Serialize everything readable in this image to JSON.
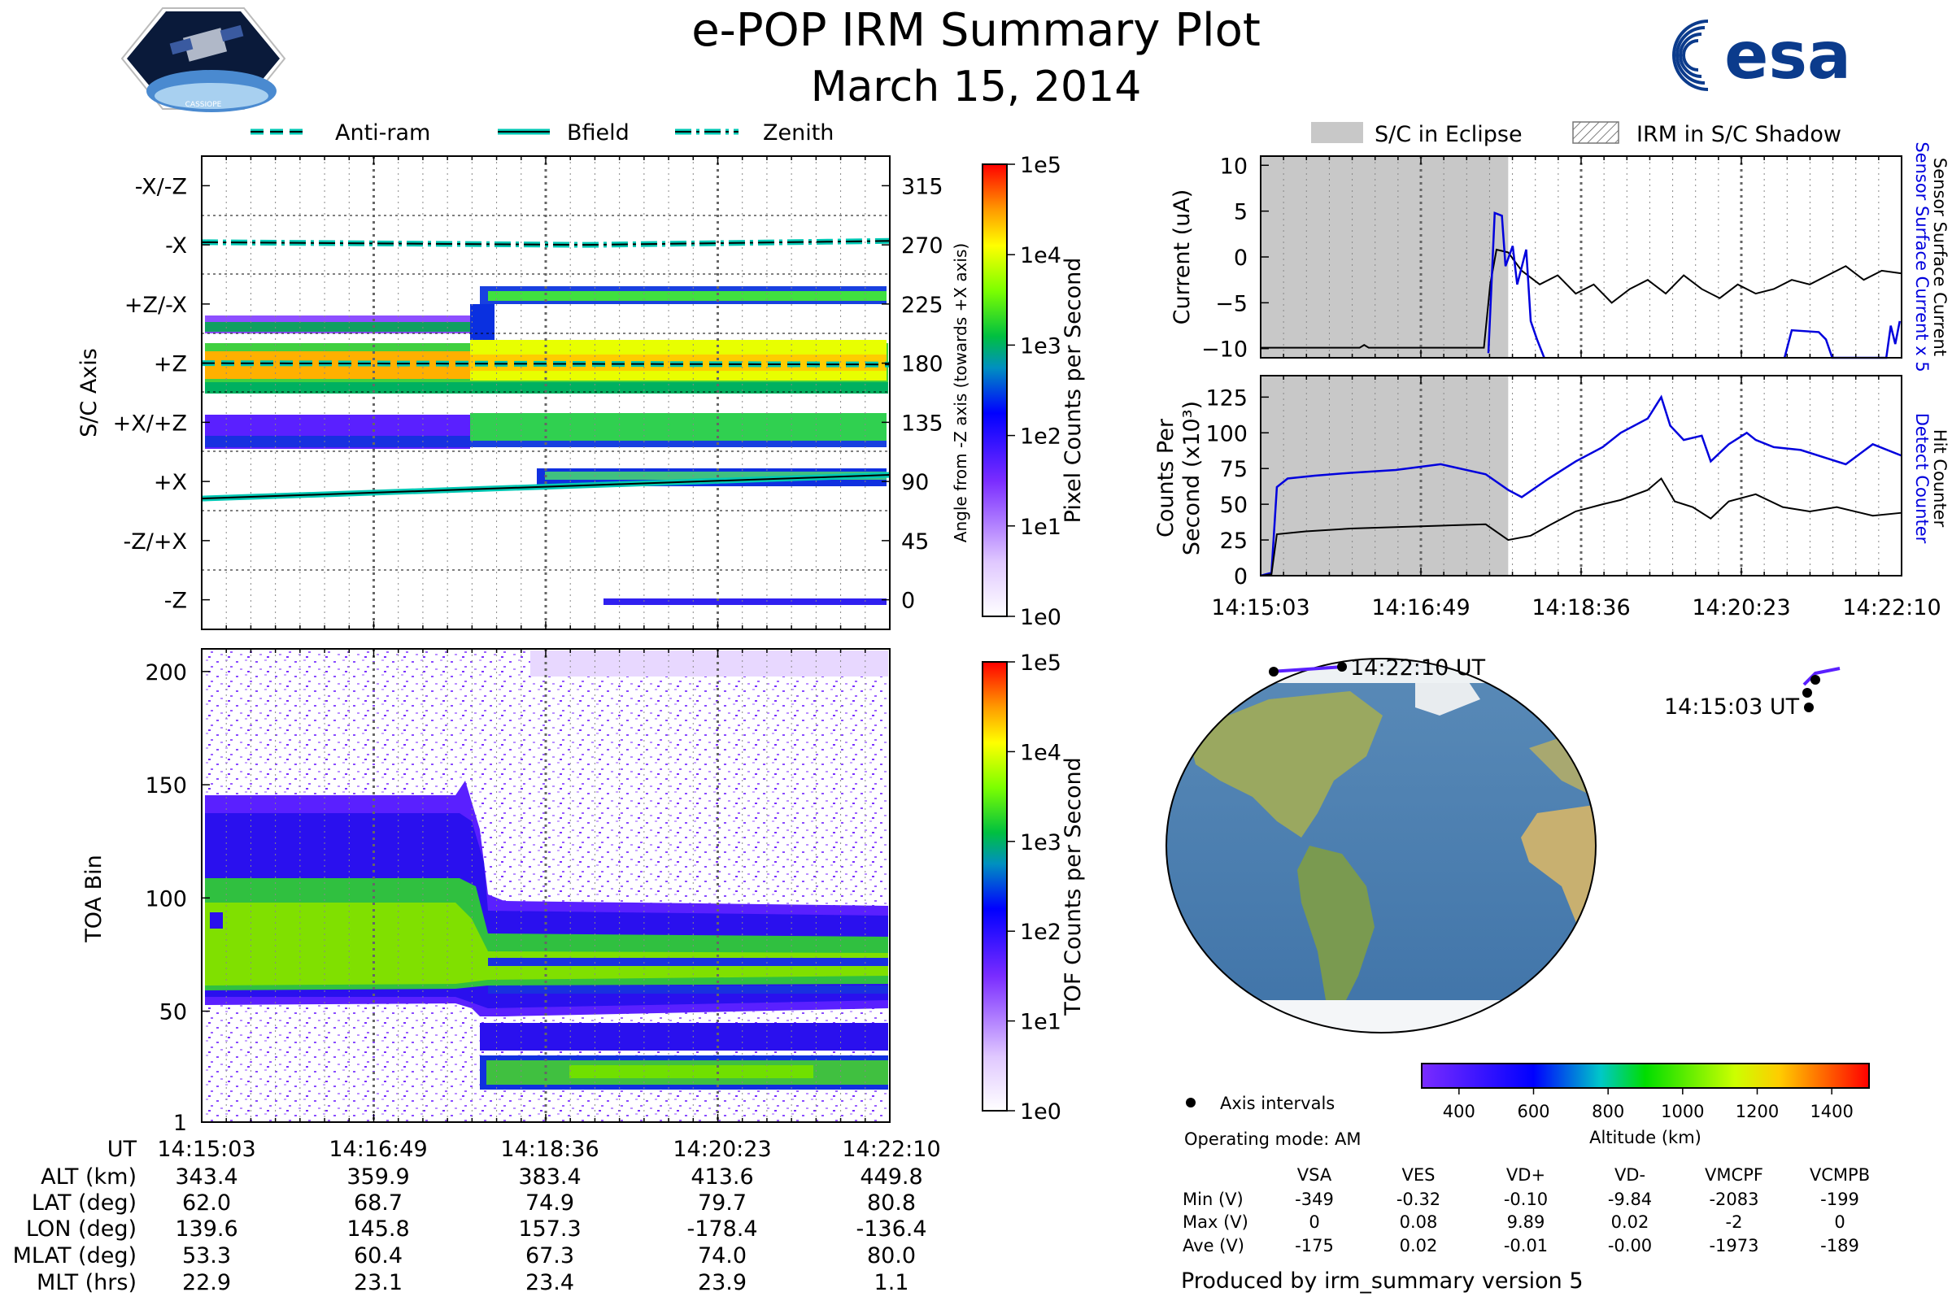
{
  "title": "e-POP IRM Summary Plot",
  "date": "March 15, 2014",
  "logo_text": "esa",
  "cassiope_text": "CASSIOPE",
  "colors": {
    "current": "#0000dd",
    "black": "#000000",
    "teal": "#00c8b4",
    "eclipse": "#c8c8c8"
  },
  "chart_data": [
    {
      "id": "sc-axis-spectrogram",
      "type": "heatmap",
      "ylabel": "S/C Axis",
      "y2label": "Angle from -Z axis (towards +X axis)",
      "yticks": [
        "-X/-Z",
        "-X",
        "+Z/-X",
        "+Z",
        "+X/+Z",
        "+X",
        "-Z/+X",
        "-Z"
      ],
      "y2ticks": [
        "315",
        "270",
        "225",
        "180",
        "135",
        "90",
        "45",
        "0"
      ],
      "ylim": [
        -22.5,
        337.5
      ],
      "xlim_minutes": [
        0,
        7.12
      ],
      "colorbar": {
        "label": "Pixel Counts per Second",
        "ticks": [
          "1e5",
          "1e4",
          "1e3",
          "1e2",
          "1e1",
          "1e0"
        ]
      },
      "legend": [
        "Anti-ram",
        "Bfield",
        "Zenith"
      ],
      "lines": {
        "zenith": {
          "x": [
            0,
            4,
            7.12
          ],
          "y": [
            272,
            270,
            273
          ]
        },
        "antiram": {
          "x": [
            0,
            7.12
          ],
          "y": [
            180,
            179
          ]
        },
        "bfield": {
          "x": [
            0,
            7.12
          ],
          "y": [
            77,
            95
          ]
        }
      }
    },
    {
      "id": "toa-spectrogram",
      "type": "heatmap",
      "ylabel": "TOA Bin",
      "yticks": [
        "200",
        "150",
        "100",
        "50",
        "1"
      ],
      "ylim": [
        1,
        210
      ],
      "colorbar": {
        "label": "TOF Counts per Second",
        "ticks": [
          "1e5",
          "1e4",
          "1e3",
          "1e2",
          "1e1",
          "1e0"
        ]
      }
    },
    {
      "id": "current-plot",
      "type": "line",
      "ylabel": "Current (uA)",
      "y2label_a": "Sensor Surface Current x 5",
      "y2label_b": "Sensor Surface Current",
      "yticks": [
        "10",
        "5",
        "0",
        "−5",
        "−10"
      ],
      "ylim": [
        -11,
        11
      ],
      "legend": [
        "S/C in Eclipse",
        "IRM in S/C Shadow"
      ],
      "eclipse_end_min": 2.75,
      "series": [
        {
          "name": "Sensor Surface Current",
          "x": [
            0,
            1.1,
            1.15,
            1.2,
            2.48,
            2.55,
            2.62,
            2.75,
            2.9,
            3.1,
            3.3,
            3.5,
            3.7,
            3.9,
            4.1,
            4.3,
            4.5,
            4.7,
            4.9,
            5.1,
            5.3,
            5.5,
            5.7,
            5.9,
            6.1,
            6.3,
            6.5,
            6.7,
            6.9,
            7.12
          ],
          "y": [
            -9.9,
            -9.9,
            -9.6,
            -9.9,
            -9.9,
            -3,
            0.8,
            0.5,
            -1.5,
            -3,
            -2,
            -4,
            -3,
            -5,
            -3.5,
            -2.5,
            -4,
            -2,
            -3.5,
            -4.5,
            -3,
            -4,
            -3.5,
            -2.5,
            -3,
            -2,
            -1,
            -2.5,
            -1.5,
            -1.8
          ]
        },
        {
          "name": "Sensor Surface Current x 5",
          "x": [
            2.53,
            2.6,
            2.68,
            2.72,
            2.8,
            2.85,
            2.95,
            3.0,
            3.07,
            3.15
          ],
          "y": [
            -10.5,
            4.8,
            4.5,
            -1,
            1.2,
            -3,
            0.8,
            -7,
            -9,
            -11
          ]
        },
        {
          "name": "Sensor Surface Current x 5 (late)",
          "x": [
            5.82,
            5.9,
            6.2,
            6.28,
            6.35,
            6.95,
            7.0,
            7.05,
            7.1
          ],
          "y": [
            -11,
            -8,
            -8.2,
            -9,
            -11,
            -11,
            -7.5,
            -9.5,
            -7
          ]
        }
      ]
    },
    {
      "id": "counts-plot",
      "type": "line",
      "ylabel_1": "Counts Per",
      "ylabel_2": "Second (x10³)",
      "y2label_a": "Detect Counter",
      "y2label_b": "Hit Counter",
      "yticks": [
        "125",
        "100",
        "75",
        "50",
        "25",
        "0"
      ],
      "ylim": [
        0,
        140
      ],
      "xticks": [
        "14:15:03",
        "14:16:49",
        "14:18:36",
        "14:20:23",
        "14:22:10"
      ],
      "series": [
        {
          "name": "Detect Counter",
          "x": [
            0,
            0.12,
            0.18,
            0.3,
            0.6,
            1.0,
            1.5,
            2.0,
            2.5,
            2.75,
            2.9,
            3.2,
            3.5,
            3.8,
            4.0,
            4.3,
            4.45,
            4.55,
            4.7,
            4.9,
            5.0,
            5.2,
            5.4,
            5.5,
            5.7,
            6.0,
            6.3,
            6.5,
            6.8,
            7.12
          ],
          "y": [
            0,
            2,
            62,
            68,
            70,
            72,
            74,
            78,
            71,
            60,
            55,
            68,
            80,
            90,
            100,
            110,
            125,
            105,
            95,
            98,
            80,
            92,
            100,
            95,
            90,
            88,
            82,
            78,
            92,
            84
          ]
        },
        {
          "name": "Hit Counter",
          "x": [
            0,
            0.12,
            0.18,
            0.5,
            1.0,
            1.5,
            2.0,
            2.5,
            2.75,
            3.0,
            3.2,
            3.5,
            3.8,
            4.0,
            4.3,
            4.45,
            4.6,
            4.8,
            5.0,
            5.2,
            5.5,
            5.8,
            6.1,
            6.4,
            6.8,
            7.12
          ],
          "y": [
            0,
            1,
            29,
            31,
            33,
            34,
            35,
            36,
            25,
            28,
            35,
            45,
            50,
            53,
            60,
            68,
            52,
            48,
            40,
            52,
            57,
            48,
            45,
            48,
            42,
            44
          ]
        }
      ]
    },
    {
      "id": "orbit-map",
      "type": "scatter",
      "labels": [
        "14:22:10 UT",
        "14:15:03 UT"
      ],
      "colorbar": {
        "label": "Altitude (km)",
        "ticks": [
          "400",
          "600",
          "800",
          "1000",
          "1200",
          "1400"
        ],
        "range": [
          300,
          1500
        ]
      },
      "track_lonlat": [
        [
          139.6,
          62.0
        ],
        [
          142.0,
          65.0
        ],
        [
          145.8,
          68.7
        ],
        [
          152.0,
          72.0
        ],
        [
          157.3,
          74.9
        ],
        [
          -178.4,
          79.7
        ],
        [
          -136.4,
          80.8
        ]
      ]
    }
  ],
  "ephemeris": {
    "x_labels": [
      "UT",
      "ALT (km)",
      "LAT (deg)",
      "LON (deg)",
      "MLAT (deg)",
      "MLT (hrs)"
    ],
    "columns": [
      [
        "14:15:03",
        "343.4",
        "62.0",
        "139.6",
        "53.3",
        "22.9"
      ],
      [
        "14:16:49",
        "359.9",
        "68.7",
        "145.8",
        "60.4",
        "23.1"
      ],
      [
        "14:18:36",
        "383.4",
        "74.9",
        "157.3",
        "67.3",
        "23.4"
      ],
      [
        "14:20:23",
        "413.6",
        "79.7",
        "-178.4",
        "74.0",
        "23.9"
      ],
      [
        "14:22:10",
        "449.8",
        "80.8",
        "-136.4",
        "80.0",
        "1.1"
      ]
    ]
  },
  "info": {
    "axis_intervals": "Axis intervals",
    "operating_mode": "Operating mode: AM",
    "produced_by": "Produced by irm_summary version 5"
  },
  "voltages": {
    "headers": [
      "VSA",
      "VES",
      "VD+",
      "VD-",
      "VMCPF",
      "VCMPB"
    ],
    "rows": [
      {
        "label": "Min (V)",
        "values": [
          "-349",
          "-0.32",
          "-0.10",
          "-9.84",
          "-2083",
          "-199"
        ]
      },
      {
        "label": "Max (V)",
        "values": [
          "0",
          "0.08",
          "9.89",
          "0.02",
          "-2",
          "0"
        ]
      },
      {
        "label": "Ave (V)",
        "values": [
          "-175",
          "0.02",
          "-0.01",
          "-0.00",
          "-1973",
          "-189"
        ]
      }
    ]
  }
}
